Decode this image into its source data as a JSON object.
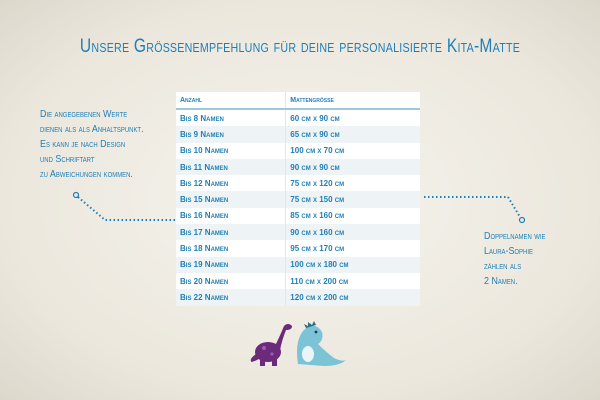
{
  "title": "Unsere Größenempfehlung für deine personalisierte Kita-Matte",
  "left_note": [
    "Die angegebenen Werte",
    "dienen als als Anhaltspunkt.",
    "Es kann je nach Design",
    "und Schriftart",
    "zu Abweichungen kommen."
  ],
  "right_note": [
    "Doppelnamen wie",
    "Laura-Sophie",
    "zählen als",
    "2 Namen."
  ],
  "table": {
    "headers": [
      "Anzahl",
      "Mattengröße"
    ],
    "rows": [
      [
        "Bis 8 Namen",
        "60 cm x 90 cm"
      ],
      [
        "Bis 9 Namen",
        "65 cm x 90 cm"
      ],
      [
        "Bis 10 Namen",
        "100 cm x 70 cm"
      ],
      [
        "Bis 11 Namen",
        "90 cm x 90 cm"
      ],
      [
        "Bis 12 Namen",
        "75 cm x 120 cm"
      ],
      [
        "Bis 15 Namen",
        "75 cm x 150 cm"
      ],
      [
        "Bis 16 Namen",
        "85 cm x 160 cm"
      ],
      [
        "Bis 17 Namen",
        "90 cm x 160 cm"
      ],
      [
        "Bis 18 Namen",
        "95 cm x 170 cm"
      ],
      [
        "Bis 19 Namen",
        "100 cm x 180 cm"
      ],
      [
        "Bis 20 Namen",
        "110 cm x 200 cm"
      ],
      [
        "Bis 22 Namen",
        "120 cm x 200 cm"
      ]
    ]
  },
  "colors": {
    "accent": "#1f7fb5",
    "purple_dino": "#6b2a7a",
    "blue_dino": "#7cc3d6"
  },
  "icons": [
    "purple-dinosaur-icon",
    "blue-dinosaur-icon"
  ]
}
